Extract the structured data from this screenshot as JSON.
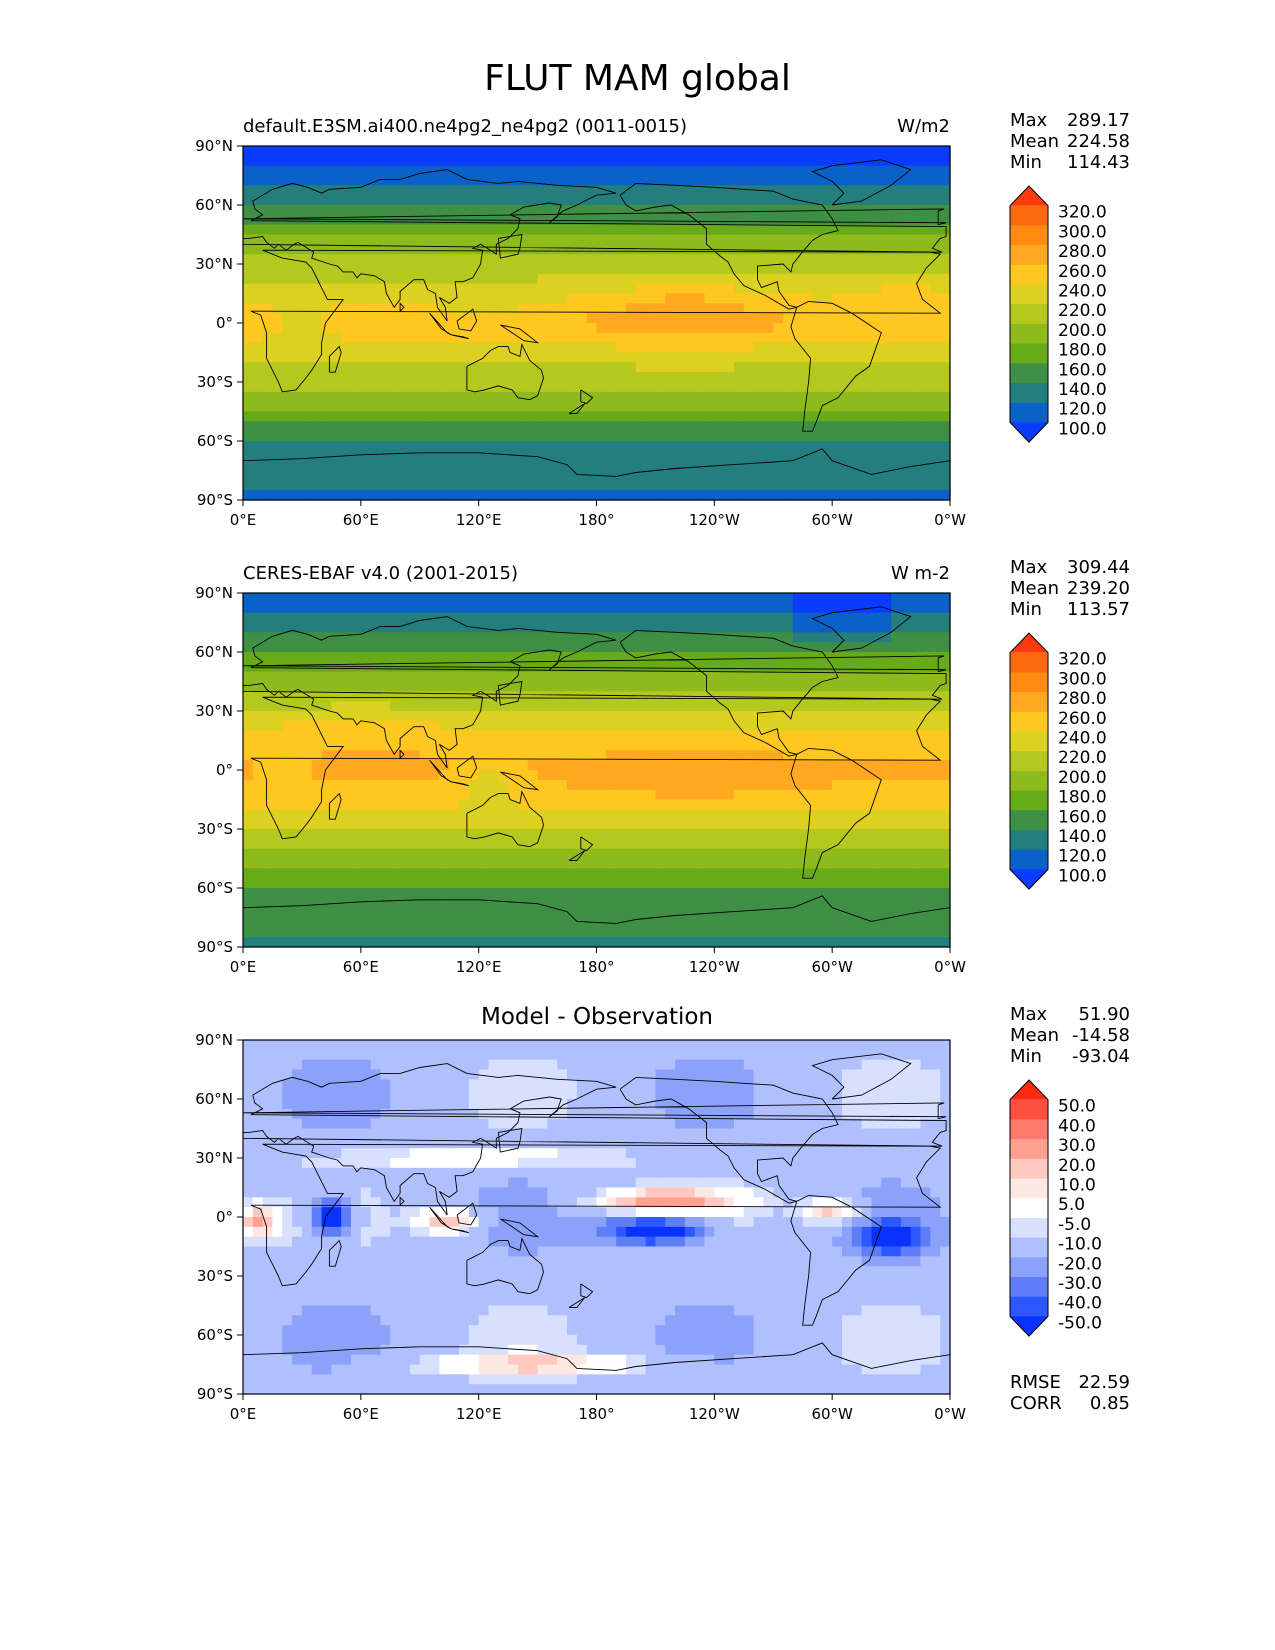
{
  "figure_title": "FLUT MAM global",
  "panels": [
    {
      "title_left": "default.E3SM.ai400.ne4pg2_ne4pg2 (0011-0015)",
      "title_center": "",
      "units": "W/m2",
      "stats": {
        "max_label": "Max",
        "max": "289.17",
        "mean_label": "Mean",
        "mean": "224.58",
        "min_label": "Min",
        "min": "114.43"
      },
      "colorbar": {
        "levels": [
          "320.0",
          "300.0",
          "280.0",
          "260.0",
          "240.0",
          "220.0",
          "200.0",
          "180.0",
          "160.0",
          "140.0",
          "120.0",
          "100.0"
        ],
        "colors": [
          "#ff3a0f",
          "#ff6a10",
          "#ff8a10",
          "#ffa820",
          "#ffc820",
          "#dcd120",
          "#b5c81e",
          "#8fba1c",
          "#68ab1a",
          "#3f8f45",
          "#257e7e",
          "#0a62c8",
          "#0a3cff"
        ]
      }
    },
    {
      "title_left": "CERES-EBAF v4.0 (2001-2015)",
      "title_center": "",
      "units": "W m-2",
      "stats": {
        "max_label": "Max",
        "max": "309.44",
        "mean_label": "Mean",
        "mean": "239.20",
        "min_label": "Min",
        "min": "113.57"
      },
      "colorbar": {
        "levels": [
          "320.0",
          "300.0",
          "280.0",
          "260.0",
          "240.0",
          "220.0",
          "200.0",
          "180.0",
          "160.0",
          "140.0",
          "120.0",
          "100.0"
        ],
        "colors": [
          "#ff3a0f",
          "#ff6a10",
          "#ff8a10",
          "#ffa820",
          "#ffc820",
          "#dcd120",
          "#b5c81e",
          "#8fba1c",
          "#68ab1a",
          "#3f8f45",
          "#257e7e",
          "#0a62c8",
          "#0a3cff"
        ]
      }
    },
    {
      "title_left": "",
      "title_center": "Model - Observation",
      "units": "",
      "stats": {
        "max_label": "Max",
        "max": "51.90",
        "mean_label": "Mean",
        "mean": "-14.58",
        "min_label": "Min",
        "min": "-93.04"
      },
      "colorbar": {
        "levels": [
          "50.0",
          "40.0",
          "30.0",
          "20.0",
          "10.0",
          "5.0",
          "-5.0",
          "-10.0",
          "-20.0",
          "-30.0",
          "-40.0",
          "-50.0"
        ],
        "colors": [
          "#ff2a10",
          "#ff5040",
          "#ff7a6a",
          "#ffa090",
          "#ffc8c0",
          "#ffe8e4",
          "#ffffff",
          "#d8e0ff",
          "#b0c0ff",
          "#8ca2fa",
          "#5e7ef8",
          "#2e58ff",
          "#0a32ff"
        ]
      },
      "metrics": {
        "rmse_label": "RMSE",
        "rmse": "22.59",
        "corr_label": "CORR",
        "corr": "0.85"
      }
    }
  ],
  "axes": {
    "lat_ticks": [
      "90°N",
      "60°N",
      "30°N",
      "0°",
      "30°S",
      "60°S",
      "90°S"
    ],
    "lon_ticks": [
      "0°E",
      "60°E",
      "120°E",
      "180°",
      "120°W",
      "60°W",
      "0°W"
    ]
  }
}
